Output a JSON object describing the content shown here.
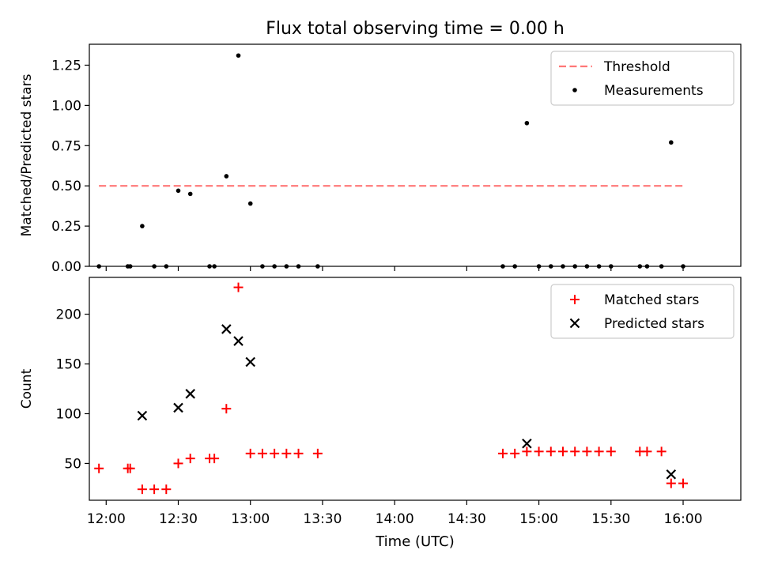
{
  "figure": {
    "title": "Flux total observing time = 0.00 h",
    "xlabel": "Time (UTC)"
  },
  "chart_data": [
    {
      "type": "scatter",
      "title": "Flux total observing time = 0.00 h",
      "xlabel": "",
      "ylabel": "Matched/Predicted stars",
      "ylim": [
        0,
        1.38
      ],
      "xlim": [
        "11:53",
        "16:24"
      ],
      "x_unit": "time of day (UTC)",
      "yticks": [
        "0.00",
        "0.25",
        "0.50",
        "0.75",
        "1.00",
        "1.25"
      ],
      "xticks": [
        "12:00",
        "12:30",
        "13:00",
        "13:30",
        "14:00",
        "14:30",
        "15:00",
        "15:30",
        "16:00"
      ],
      "grid": false,
      "legend": "top-right",
      "threshold": {
        "name": "Threshold",
        "value": 0.5,
        "x_range": [
          "11:57",
          "16:00"
        ],
        "style": "dashed",
        "color": "#ff7777"
      },
      "series": [
        {
          "name": "Measurements",
          "color": "#000000",
          "marker": "dot",
          "points": [
            [
              "11:57",
              0.0
            ],
            [
              "12:09",
              0.0
            ],
            [
              "12:10",
              0.0
            ],
            [
              "12:15",
              0.25
            ],
            [
              "12:20",
              0.0
            ],
            [
              "12:25",
              0.0
            ],
            [
              "12:30",
              0.47
            ],
            [
              "12:35",
              0.45
            ],
            [
              "12:43",
              0.0
            ],
            [
              "12:45",
              0.0
            ],
            [
              "12:50",
              0.56
            ],
            [
              "12:55",
              1.31
            ],
            [
              "13:00",
              0.39
            ],
            [
              "13:05",
              0.0
            ],
            [
              "13:10",
              0.0
            ],
            [
              "13:15",
              0.0
            ],
            [
              "13:20",
              0.0
            ],
            [
              "13:28",
              0.0
            ],
            [
              "14:45",
              0.0
            ],
            [
              "14:50",
              0.0
            ],
            [
              "14:55",
              0.89
            ],
            [
              "15:00",
              0.0
            ],
            [
              "15:05",
              0.0
            ],
            [
              "15:10",
              0.0
            ],
            [
              "15:15",
              0.0
            ],
            [
              "15:20",
              0.0
            ],
            [
              "15:25",
              0.0
            ],
            [
              "15:30",
              0.0
            ],
            [
              "15:42",
              0.0
            ],
            [
              "15:45",
              0.0
            ],
            [
              "15:51",
              0.0
            ],
            [
              "15:55",
              0.77
            ],
            [
              "16:00",
              0.0
            ]
          ]
        }
      ]
    },
    {
      "type": "scatter",
      "title": "",
      "xlabel": "Time (UTC)",
      "ylabel": "Count",
      "ylim": [
        13,
        237
      ],
      "xlim": [
        "11:53",
        "16:24"
      ],
      "x_unit": "time of day (UTC)",
      "yticks": [
        "50",
        "100",
        "150",
        "200"
      ],
      "xticks": [
        "12:00",
        "12:30",
        "13:00",
        "13:30",
        "14:00",
        "14:30",
        "15:00",
        "15:30",
        "16:00"
      ],
      "grid": false,
      "legend": "top-right",
      "series": [
        {
          "name": "Matched stars",
          "color": "#ff0000",
          "marker": "plus",
          "points": [
            [
              "11:57",
              45
            ],
            [
              "12:09",
              45
            ],
            [
              "12:10",
              45
            ],
            [
              "12:15",
              24
            ],
            [
              "12:20",
              24
            ],
            [
              "12:25",
              24
            ],
            [
              "12:30",
              50
            ],
            [
              "12:35",
              55
            ],
            [
              "12:43",
              55
            ],
            [
              "12:45",
              55
            ],
            [
              "12:50",
              105
            ],
            [
              "12:55",
              227
            ],
            [
              "13:00",
              60
            ],
            [
              "13:05",
              60
            ],
            [
              "13:10",
              60
            ],
            [
              "13:15",
              60
            ],
            [
              "13:20",
              60
            ],
            [
              "13:28",
              60
            ],
            [
              "14:45",
              60
            ],
            [
              "14:50",
              60
            ],
            [
              "14:55",
              62
            ],
            [
              "15:00",
              62
            ],
            [
              "15:05",
              62
            ],
            [
              "15:10",
              62
            ],
            [
              "15:15",
              62
            ],
            [
              "15:20",
              62
            ],
            [
              "15:25",
              62
            ],
            [
              "15:30",
              62
            ],
            [
              "15:42",
              62
            ],
            [
              "15:45",
              62
            ],
            [
              "15:51",
              62
            ],
            [
              "15:55",
              30
            ],
            [
              "16:00",
              30
            ]
          ]
        },
        {
          "name": "Predicted stars",
          "color": "#000000",
          "marker": "x",
          "points": [
            [
              "12:15",
              98
            ],
            [
              "12:30",
              106
            ],
            [
              "12:35",
              120
            ],
            [
              "12:50",
              185
            ],
            [
              "12:55",
              173
            ],
            [
              "13:00",
              152
            ],
            [
              "14:55",
              70
            ],
            [
              "15:55",
              39
            ]
          ]
        }
      ]
    }
  ]
}
